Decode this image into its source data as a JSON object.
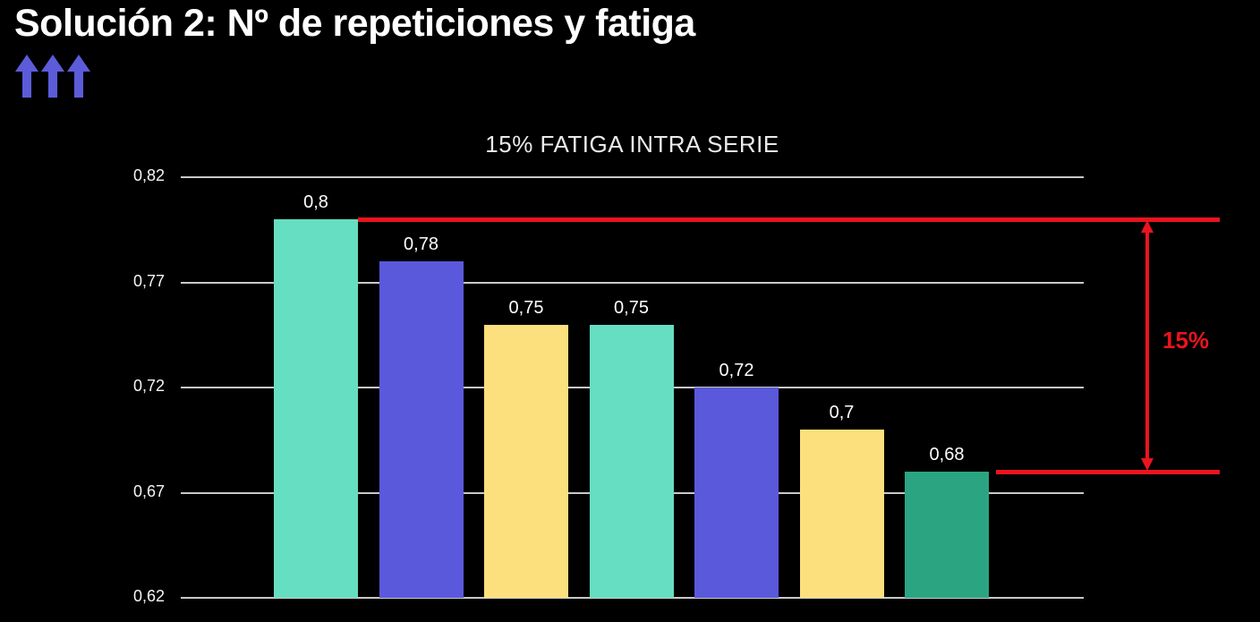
{
  "slide": {
    "title": "Solución 2: Nº de repeticiones y fatiga",
    "arrow_icon": "triple-up-arrow",
    "arrow_color": "#5C5CDA"
  },
  "chart_data": {
    "type": "bar",
    "title": "15% FATIGA INTRA SERIE",
    "xlabel": "",
    "ylabel": "",
    "grid": true,
    "legend": "none",
    "ylim": [
      0.62,
      0.82
    ],
    "y_ticks": [
      0.82,
      0.77,
      0.72,
      0.67,
      0.62
    ],
    "y_tick_labels": [
      "0,82",
      "0,77",
      "0,72",
      "0,67",
      "0,62"
    ],
    "values": [
      0.8,
      0.78,
      0.75,
      0.75,
      0.72,
      0.7,
      0.68
    ],
    "value_labels": [
      "0,8",
      "0,78",
      "0,75",
      "0,75",
      "0,72",
      "0,7",
      "0,68"
    ],
    "bar_colors": [
      "#66DEC1",
      "#5B59DB",
      "#FCE07D",
      "#66DEC1",
      "#5B59DB",
      "#FCE07D",
      "#2BA581"
    ],
    "gridline_color": "#C9C9C9",
    "label_color": "#FFFFFF",
    "annotation": {
      "label": "15%",
      "from_value": 0.8,
      "to_value": 0.68,
      "color": "#E9141D"
    }
  }
}
